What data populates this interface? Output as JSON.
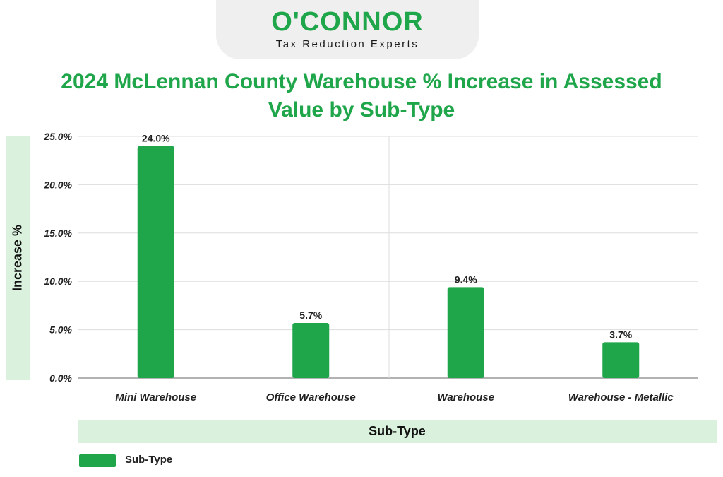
{
  "brand": {
    "name": "O'CONNOR",
    "tagline": "Tax Reduction Experts",
    "color": "#1fa64a"
  },
  "chart_data": {
    "type": "bar",
    "title": "2024 McLennan County Warehouse % Increase in Assessed Value by Sub-Type",
    "xlabel": "Sub-Type",
    "ylabel": "Increase %",
    "categories": [
      "Mini Warehouse",
      "Office Warehouse",
      "Warehouse",
      "Warehouse - Metallic"
    ],
    "series": [
      {
        "name": "Sub-Type",
        "values": [
          24.0,
          5.7,
          9.4,
          3.7
        ],
        "value_labels": [
          "24.0%",
          "5.7%",
          "9.4%",
          "3.7%"
        ],
        "color": "#1fa64a"
      }
    ],
    "ylim": [
      0,
      25
    ],
    "y_ticks": [
      0,
      5,
      10,
      15,
      20,
      25
    ],
    "y_tick_labels": [
      "0.0%",
      "5.0%",
      "10.0%",
      "15.0%",
      "20.0%",
      "25.0%"
    ],
    "grid": true,
    "legend": "bottom-left"
  }
}
